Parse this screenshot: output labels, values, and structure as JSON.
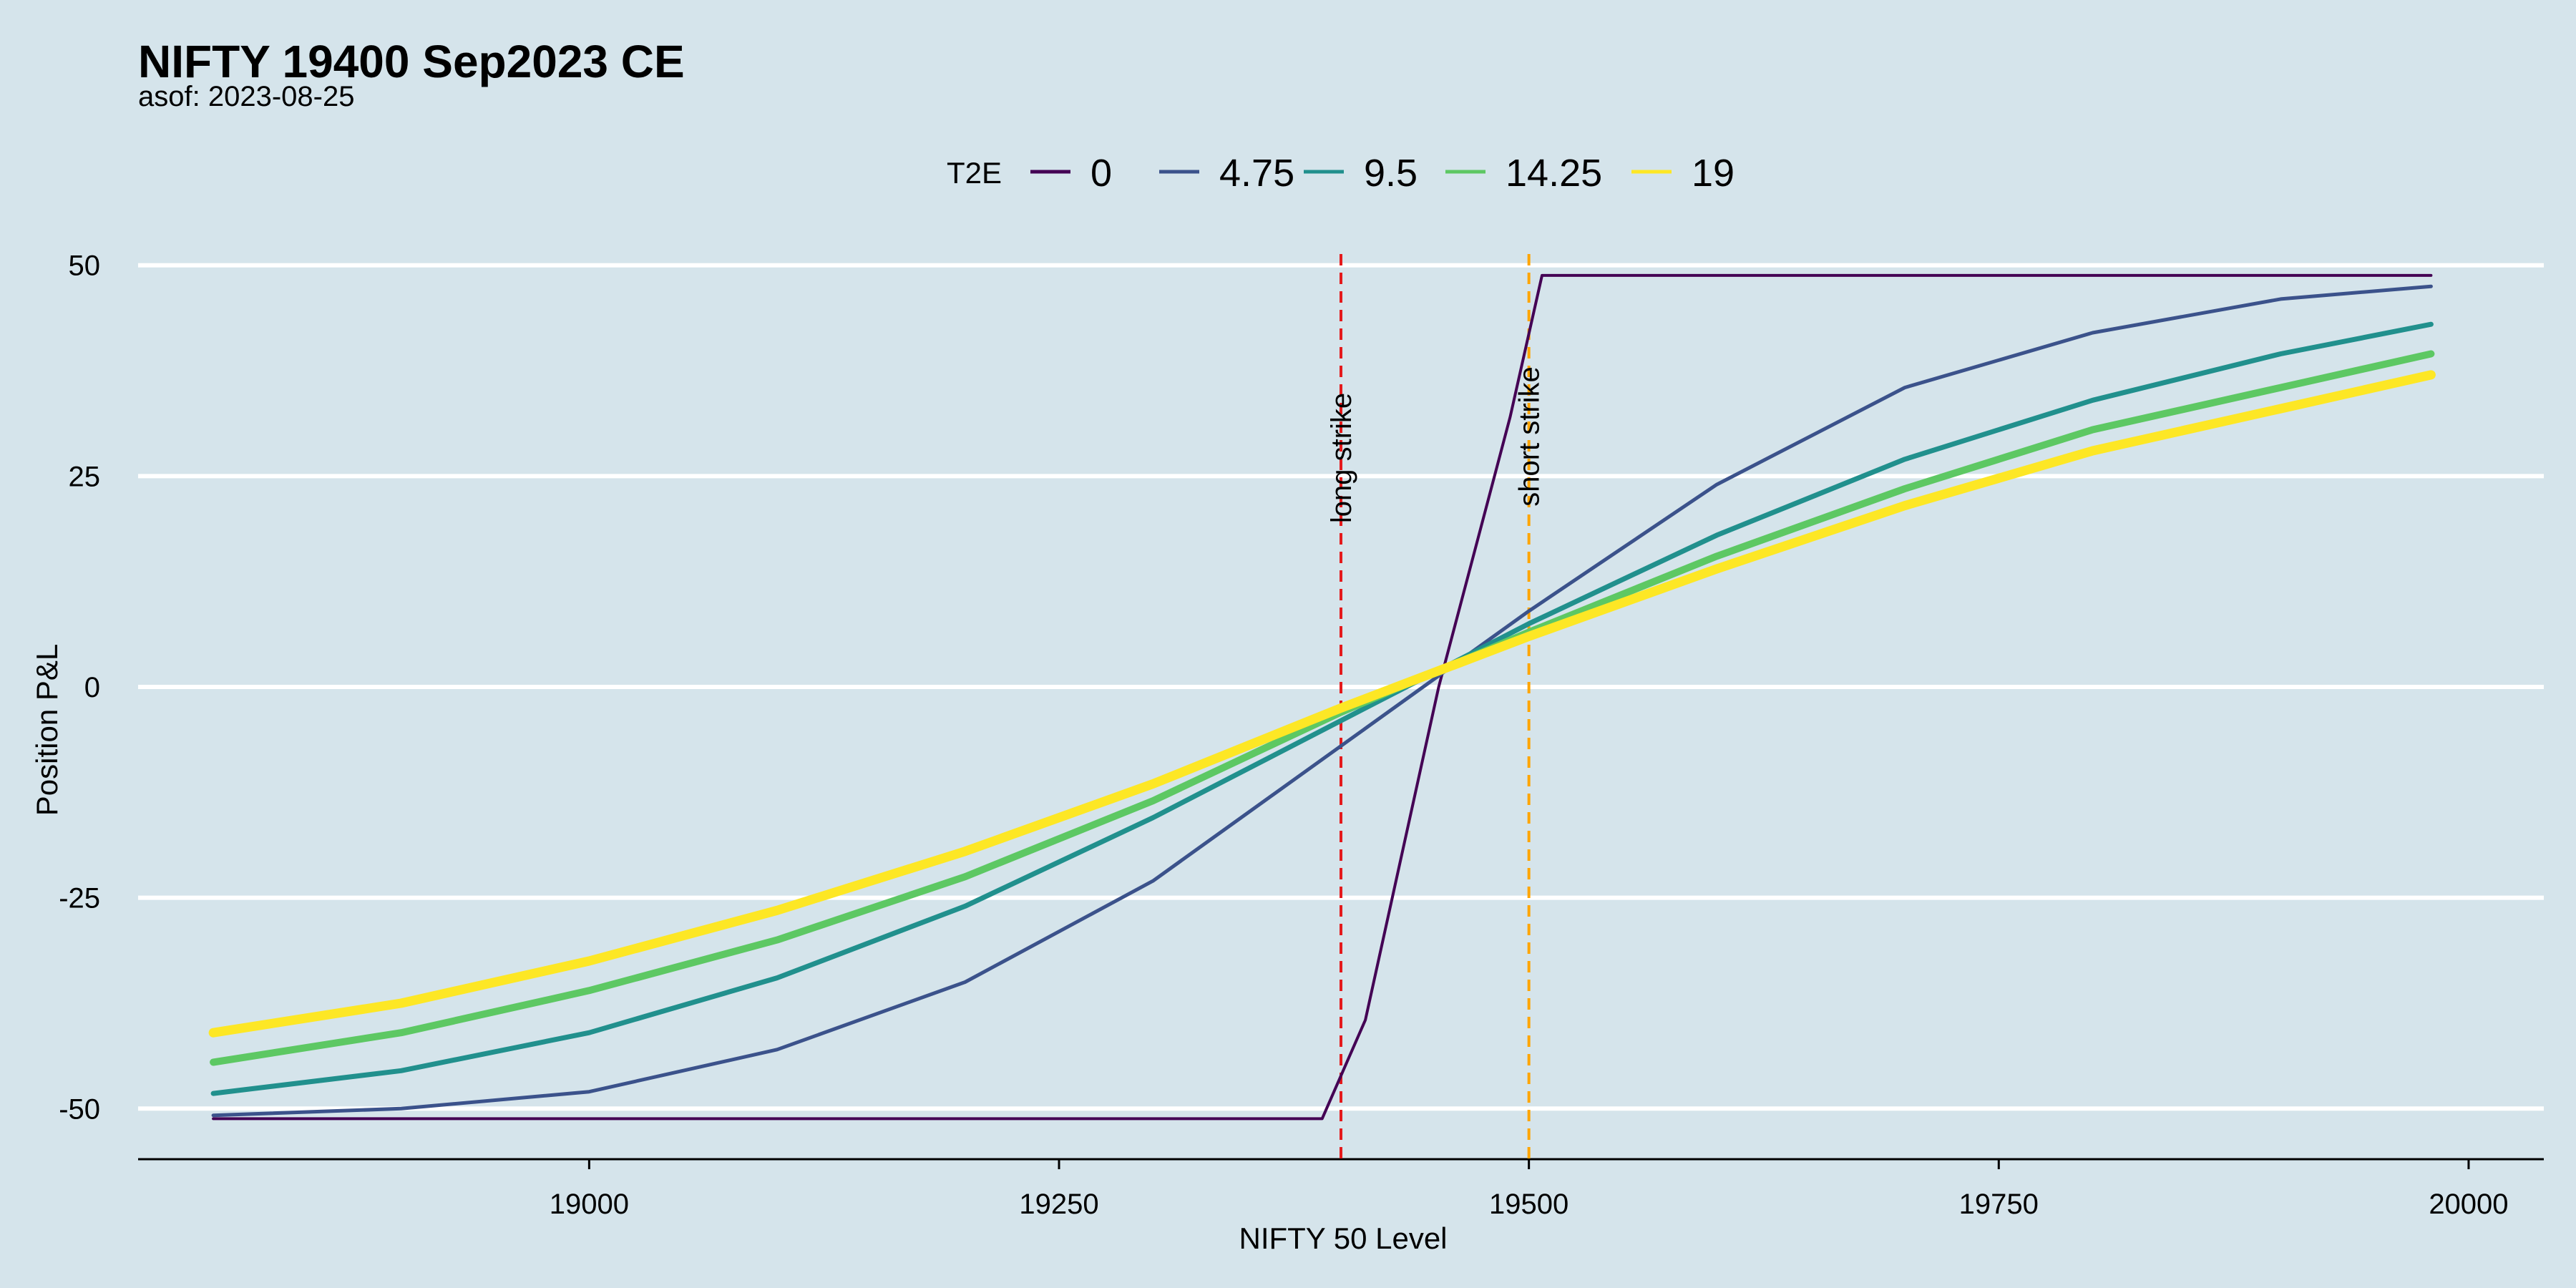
{
  "chart_data": {
    "type": "line",
    "title": "NIFTY 19400 Sep2023 CE",
    "subtitle": "asof: 2023-08-25",
    "xlabel": "NIFTY 50 Level",
    "ylabel": "Position P&L",
    "xlim": [
      18760,
      20040
    ],
    "ylim": [
      -56,
      56
    ],
    "x_ticks": [
      19000,
      19250,
      19500,
      19750,
      20000
    ],
    "y_ticks": [
      50,
      25,
      0,
      -25,
      -50
    ],
    "grid": "horizontal",
    "legend": {
      "title": "T2E",
      "placement": "top",
      "entries": [
        "0",
        "4.75",
        "9.5",
        "14.25",
        "19"
      ]
    },
    "vertical_lines": [
      {
        "x": 19400,
        "label": "long strike",
        "color": "#e41a1c",
        "dash": true
      },
      {
        "x": 19500,
        "label": "short strike",
        "color": "#ffa500",
        "dash": true
      }
    ],
    "series": [
      {
        "name": "0",
        "color": "#440154",
        "x": [
          18800,
          19390,
          19413,
          19452,
          19490,
          19507,
          19980
        ],
        "y": [
          -51.2,
          -51.2,
          -39.5,
          0,
          32,
          48.8,
          48.8
        ]
      },
      {
        "name": "4.75",
        "color": "#3b528b",
        "x": [
          18800,
          18900,
          19000,
          19100,
          19200,
          19300,
          19400,
          19450,
          19500,
          19600,
          19700,
          19800,
          19900,
          19980
        ],
        "y": [
          -50.8,
          -50,
          -48,
          -43,
          -35,
          -23,
          -7,
          1,
          9,
          24,
          35.5,
          42,
          46,
          47.5
        ]
      },
      {
        "name": "9.5",
        "color": "#21908d",
        "x": [
          18800,
          18900,
          19000,
          19100,
          19200,
          19300,
          19400,
          19500,
          19600,
          19700,
          19800,
          19900,
          19980
        ],
        "y": [
          -48.2,
          -45.5,
          -41,
          -34.5,
          -26,
          -15.5,
          -4,
          7.5,
          18,
          27,
          34,
          39.5,
          43
        ]
      },
      {
        "name": "14.25",
        "color": "#5dc863",
        "x": [
          18800,
          18900,
          19000,
          19100,
          19200,
          19300,
          19400,
          19500,
          19600,
          19700,
          19800,
          19900,
          19980
        ],
        "y": [
          -44.5,
          -41,
          -36,
          -30,
          -22.5,
          -13.5,
          -3,
          6.5,
          15.5,
          23.5,
          30.5,
          35.5,
          39.5
        ]
      },
      {
        "name": "19",
        "color": "#fde725",
        "x": [
          18800,
          18900,
          19000,
          19100,
          19200,
          19300,
          19400,
          19500,
          19600,
          19700,
          19800,
          19900,
          19980
        ],
        "y": [
          -41,
          -37.5,
          -32.5,
          -26.5,
          -19.5,
          -11.5,
          -2.5,
          6,
          14,
          21.5,
          28,
          33,
          37
        ]
      }
    ]
  }
}
